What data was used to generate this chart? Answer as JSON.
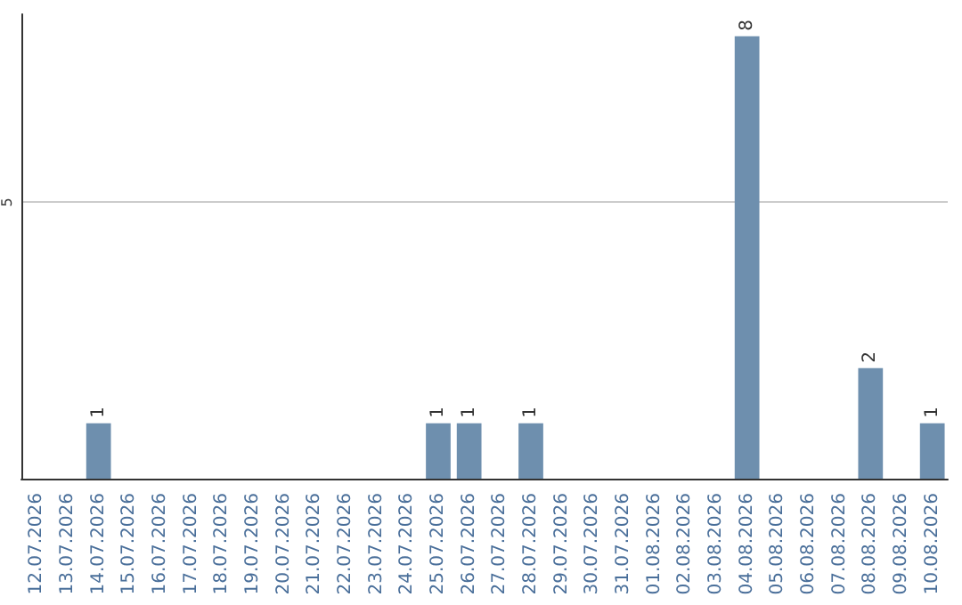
{
  "chart_data": {
    "type": "bar",
    "categories": [
      "12.07.2026",
      "13.07.2026",
      "14.07.2026",
      "15.07.2026",
      "16.07.2026",
      "17.07.2026",
      "18.07.2026",
      "19.07.2026",
      "20.07.2026",
      "21.07.2026",
      "22.07.2026",
      "23.07.2026",
      "24.07.2026",
      "25.07.2026",
      "26.07.2026",
      "27.07.2026",
      "28.07.2026",
      "29.07.2026",
      "30.07.2026",
      "31.07.2026",
      "01.08.2026",
      "02.08.2026",
      "03.08.2026",
      "04.08.2026",
      "05.08.2026",
      "06.08.2026",
      "07.08.2026",
      "08.08.2026",
      "09.08.2026",
      "10.08.2026"
    ],
    "values": [
      0,
      0,
      1,
      0,
      0,
      0,
      0,
      0,
      0,
      0,
      0,
      0,
      0,
      1,
      1,
      0,
      1,
      0,
      0,
      0,
      0,
      0,
      0,
      8,
      0,
      0,
      0,
      2,
      0,
      1
    ],
    "value_labels": [
      null,
      null,
      "1",
      null,
      null,
      null,
      null,
      null,
      null,
      null,
      null,
      null,
      null,
      "1",
      "1",
      null,
      "1",
      null,
      null,
      null,
      null,
      null,
      null,
      "8",
      null,
      null,
      null,
      "2",
      null,
      "1"
    ],
    "color": "#6e8fae",
    "ylim": [
      0,
      8.4
    ],
    "yticks": [
      5
    ],
    "grid": "y"
  }
}
